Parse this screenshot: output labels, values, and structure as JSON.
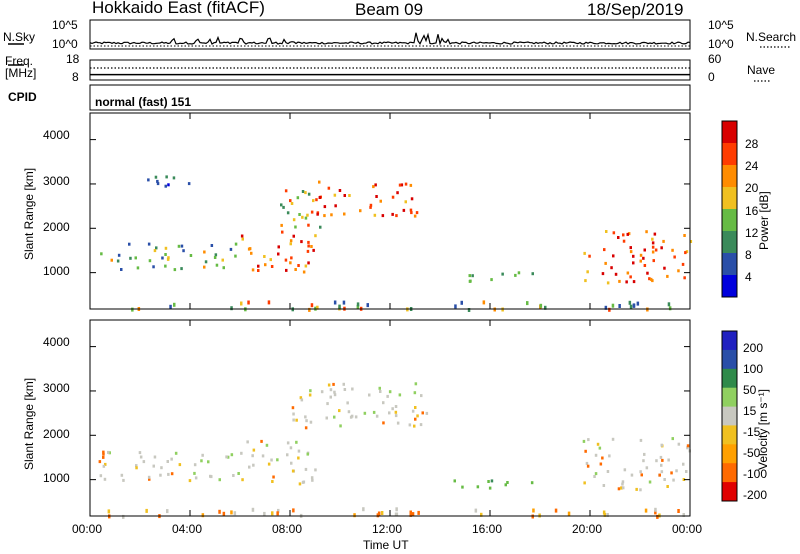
{
  "header": {
    "station": "Hokkaido East (fitACF)",
    "beam": "Beam 09",
    "date": "18/Sep/2019"
  },
  "labels": {
    "nsky": "N.Sky",
    "nsearch": "N.Search",
    "freq": "Freq.",
    "mhz": "[MHz]",
    "nave": "Nave",
    "cpid": "CPID",
    "cpid_value": "normal (fast) 151",
    "power_label": "Power [dB]",
    "velocity_label": "Velocity [m s⁻¹]"
  },
  "colors": {
    "power_scale": [
      "#0000dd",
      "#2a4fa8",
      "#3a8a5a",
      "#66bb44",
      "#f0c020",
      "#ff8c00",
      "#ff3c00",
      "#d80000"
    ],
    "velocity_scale": [
      "#e00000",
      "#ff6a00",
      "#ffa000",
      "#f0c020",
      "#c8c8c0",
      "#90d060",
      "#2f8a4a",
      "#2a4fa8",
      "#2020c0"
    ]
  },
  "chart_data": [
    {
      "type": "line",
      "name": "summary",
      "left_axis_labels": [
        "10^5",
        "10^0"
      ],
      "right_axis_labels": [
        "10^5",
        "10^0"
      ],
      "freq_left_ticks": [
        "18",
        "8"
      ],
      "freq_right_ticks": [
        "60",
        "0"
      ],
      "frequency_mhz": 10.7,
      "nave": 36
    },
    {
      "type": "heatmap",
      "name": "power",
      "ylabel": "Slant Range [km]",
      "yticks": [
        "4000",
        "3000",
        "2000",
        "1000"
      ],
      "ytick_values": [
        4000,
        3000,
        2000,
        1000
      ],
      "ylim": [
        180,
        4600
      ],
      "xlim": [
        0,
        24
      ],
      "colorbar_ticks": [
        "28",
        "24",
        "20",
        "16",
        "12",
        "8",
        "4"
      ],
      "colorbar_values": [
        28,
        24,
        20,
        16,
        12,
        8,
        4
      ],
      "colorbar_range": [
        0,
        32
      ],
      "regions": [
        {
          "t": [
            0.3,
            6.0
          ],
          "r": [
            1100,
            1700
          ],
          "c": "mix_low"
        },
        {
          "t": [
            6.0,
            9.0
          ],
          "r": [
            900,
            1900
          ],
          "c": "hot"
        },
        {
          "t": [
            7.5,
            9.3
          ],
          "r": [
            1800,
            2900
          ],
          "c": "mix_high"
        },
        {
          "t": [
            9.0,
            13.5
          ],
          "r": [
            2300,
            3100
          ],
          "c": "hot"
        },
        {
          "t": [
            1.5,
            4.2
          ],
          "r": [
            2900,
            3200
          ],
          "c": "blue"
        },
        {
          "t": [
            14.5,
            17.8
          ],
          "r": [
            800,
            1050
          ],
          "c": "green"
        },
        {
          "t": [
            19.7,
            24.0
          ],
          "r": [
            800,
            2000
          ],
          "c": "hot"
        },
        {
          "t": [
            0.3,
            24.0
          ],
          "r": [
            200,
            380
          ],
          "c": "noise"
        }
      ]
    },
    {
      "type": "heatmap",
      "name": "velocity",
      "ylabel": "Slant Range [km]",
      "yticks": [
        "4000",
        "3000",
        "2000",
        "1000"
      ],
      "ytick_values": [
        4000,
        3000,
        2000,
        1000
      ],
      "ylim": [
        180,
        4600
      ],
      "xlim": [
        0,
        24
      ],
      "xticks": [
        "00:00",
        "04:00",
        "08:00",
        "12:00",
        "16:00",
        "20:00",
        "00:00"
      ],
      "xtick_values": [
        0,
        4,
        8,
        12,
        16,
        20,
        24
      ],
      "xlabel": "Time UT",
      "colorbar_ticks": [
        "200",
        "100",
        "50",
        "15",
        "-15",
        "-50",
        "-100",
        "-200"
      ],
      "regions": [
        {
          "t": [
            0.3,
            6.0
          ],
          "r": [
            1000,
            1700
          ],
          "c": "gray"
        },
        {
          "t": [
            6.0,
            9.0
          ],
          "r": [
            900,
            1900
          ],
          "c": "gray"
        },
        {
          "t": [
            8.0,
            13.5
          ],
          "r": [
            2200,
            3200
          ],
          "c": "gray"
        },
        {
          "t": [
            14.5,
            17.8
          ],
          "r": [
            800,
            1050
          ],
          "c": "green"
        },
        {
          "t": [
            19.7,
            24.0
          ],
          "r": [
            800,
            2000
          ],
          "c": "gray"
        },
        {
          "t": [
            0.3,
            24.0
          ],
          "r": [
            200,
            380
          ],
          "c": "orange"
        }
      ]
    }
  ]
}
